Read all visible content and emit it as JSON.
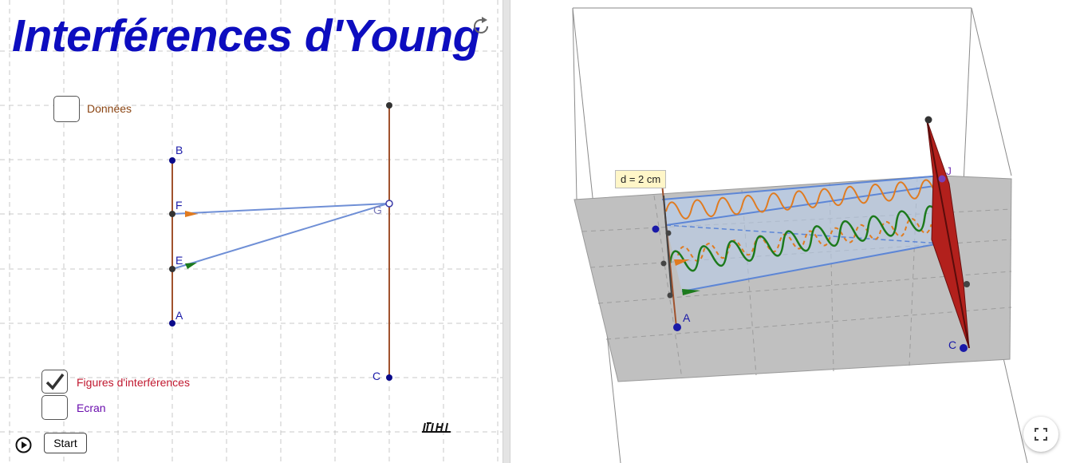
{
  "title": "Interférences d'Young",
  "checkboxes": {
    "donnees": {
      "label": "Données",
      "checked": false
    },
    "figures": {
      "label": "Figures d'interférences",
      "checked": true
    },
    "ecran": {
      "label": "Ecran",
      "checked": false
    }
  },
  "start_label": "Start",
  "points2d": {
    "b": "B",
    "f": "F",
    "e": "E",
    "a": "A",
    "g": "G",
    "c": "C"
  },
  "points3d": {
    "a": "A",
    "c": "C",
    "j": "J"
  },
  "distance_label": "d = 2 cm",
  "icons": [
    "reset-icon",
    "play-icon",
    "fullscreen-icon"
  ],
  "colors": {
    "title": "#0d0dbf",
    "point": "#1a1aa8",
    "ray": "#6f8fd6",
    "source_line": "#a0522d",
    "wave_green": "#1c7a1c",
    "wave_orange": "#e07b20",
    "screen": "#b2201c",
    "plane": "#c0c0c0"
  }
}
